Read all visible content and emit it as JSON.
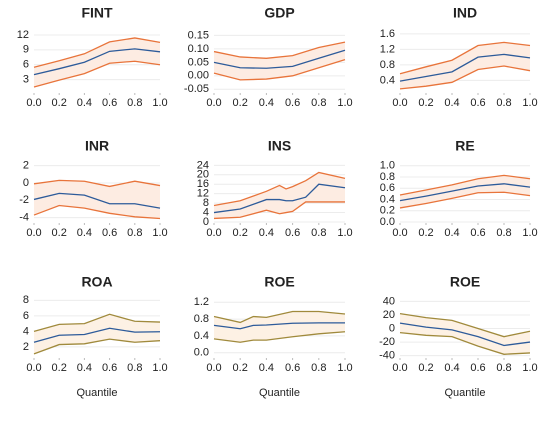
{
  "chart_data": [
    {
      "type": "line",
      "title": "FINT",
      "x": [
        0,
        0.2,
        0.4,
        0.6,
        0.8,
        1.0
      ],
      "band_color": "#fdece2",
      "grid": true,
      "xlim": [
        0,
        1
      ],
      "xticks": [
        {
          "value": 0,
          "label": "0.0"
        },
        0.2,
        0.4,
        0.6,
        0.8,
        {
          "value": 1,
          "label": "1.0"
        }
      ],
      "ylim": [
        0.5,
        13
      ],
      "yticks": [
        3,
        6,
        9,
        12
      ],
      "series": [
        {
          "color": "#e8743b",
          "values": [
            5.5,
            6.8,
            8.2,
            10.6,
            11.4,
            10.5
          ]
        },
        {
          "color": "#2d5b9a",
          "values": [
            4.0,
            5.2,
            6.5,
            8.7,
            9.2,
            8.6
          ]
        },
        {
          "color": "#e8743b",
          "values": [
            1.5,
            2.9,
            4.2,
            6.3,
            6.7,
            6.0
          ]
        }
      ]
    },
    {
      "type": "line",
      "title": "GDP",
      "x": [
        0,
        0.2,
        0.4,
        0.6,
        0.8,
        1.0
      ],
      "band_color": "#fdece2",
      "grid": true,
      "xlim": [
        0,
        1
      ],
      "xticks": [
        {
          "value": 0,
          "label": "0.0"
        },
        0.2,
        0.4,
        0.6,
        0.8,
        {
          "value": 1,
          "label": "1.0"
        }
      ],
      "ylim": [
        -0.06,
        0.17
      ],
      "yticks": [
        {
          "value": -0.05,
          "label": "-0.05"
        },
        {
          "value": 0,
          "label": "0.00"
        },
        0.05,
        {
          "value": 0.1,
          "label": "0.10"
        },
        0.15
      ],
      "series": [
        {
          "color": "#e8743b",
          "values": [
            0.09,
            0.07,
            0.065,
            0.075,
            0.105,
            0.125
          ]
        },
        {
          "color": "#2d5b9a",
          "values": [
            0.05,
            0.03,
            0.028,
            0.035,
            0.065,
            0.095
          ]
        },
        {
          "color": "#e8743b",
          "values": [
            0.01,
            -0.015,
            -0.012,
            0.0,
            0.03,
            0.06
          ]
        }
      ]
    },
    {
      "type": "line",
      "title": "IND",
      "x": [
        0,
        0.2,
        0.4,
        0.6,
        0.8,
        1.0
      ],
      "band_color": "#fdece2",
      "grid": true,
      "xlim": [
        0,
        1
      ],
      "xticks": [
        {
          "value": 0,
          "label": "0.0"
        },
        0.2,
        0.4,
        0.6,
        0.8,
        {
          "value": 1,
          "label": "1.0"
        }
      ],
      "ylim": [
        0.1,
        1.7
      ],
      "yticks": [
        0.4,
        0.8,
        1.2,
        1.6
      ],
      "series": [
        {
          "color": "#e8743b",
          "values": [
            0.57,
            0.75,
            0.92,
            1.3,
            1.38,
            1.3
          ]
        },
        {
          "color": "#2d5b9a",
          "values": [
            0.38,
            0.5,
            0.62,
            1.0,
            1.07,
            0.98
          ]
        },
        {
          "color": "#e8743b",
          "values": [
            0.18,
            0.25,
            0.35,
            0.68,
            0.77,
            0.65
          ]
        }
      ]
    },
    {
      "type": "line",
      "title": "INR",
      "x": [
        0,
        0.2,
        0.4,
        0.6,
        0.8,
        1.0
      ],
      "band_color": "#fdece2",
      "grid": true,
      "xlim": [
        0,
        1
      ],
      "xticks": [
        {
          "value": 0,
          "label": "0.0"
        },
        0.2,
        0.4,
        0.6,
        0.8,
        {
          "value": 1,
          "label": "1.0"
        }
      ],
      "ylim": [
        -4.5,
        2.3
      ],
      "yticks": [
        -4,
        -2,
        0,
        2
      ],
      "series": [
        {
          "color": "#e8743b",
          "values": [
            -0.1,
            0.3,
            0.2,
            -0.4,
            0.2,
            -0.3
          ]
        },
        {
          "color": "#2d5b9a",
          "values": [
            -1.9,
            -1.2,
            -1.4,
            -2.4,
            -2.4,
            -2.9
          ]
        },
        {
          "color": "#e8743b",
          "values": [
            -3.7,
            -2.6,
            -2.9,
            -3.5,
            -3.9,
            -4.1
          ]
        }
      ]
    },
    {
      "type": "line",
      "title": "INS",
      "x": [
        0,
        0.2,
        0.4,
        0.5,
        0.55,
        0.6,
        0.7,
        0.8,
        1.0
      ],
      "band_color": "#fdece2",
      "grid": true,
      "xlim": [
        0,
        1
      ],
      "xticks": [
        {
          "value": 0,
          "label": "0.0"
        },
        0.2,
        0.4,
        0.6,
        0.8,
        {
          "value": 1,
          "label": "1.0"
        }
      ],
      "ylim": [
        0,
        25
      ],
      "yticks": [
        0,
        4,
        8,
        12,
        16,
        20,
        24
      ],
      "series": [
        {
          "color": "#e8743b",
          "values": [
            7,
            9,
            13,
            15.5,
            14,
            15,
            17.5,
            21,
            18.5
          ]
        },
        {
          "color": "#2d5b9a",
          "values": [
            4,
            5.5,
            9.5,
            9.5,
            9,
            9,
            10.5,
            16,
            14.5
          ]
        },
        {
          "color": "#e8743b",
          "values": [
            1.5,
            2,
            5,
            3.5,
            4,
            4.5,
            8.5,
            8.5,
            8.5
          ]
        }
      ]
    },
    {
      "type": "line",
      "title": "RE",
      "x": [
        0,
        0.2,
        0.4,
        0.6,
        0.8,
        1.0
      ],
      "band_color": "#fdece2",
      "grid": true,
      "xlim": [
        0,
        1
      ],
      "xticks": [
        {
          "value": 0,
          "label": "0.0"
        },
        0.2,
        0.4,
        0.6,
        0.8,
        {
          "value": 1,
          "label": "1.0"
        }
      ],
      "ylim": [
        0,
        1.05
      ],
      "yticks": [
        {
          "value": 0,
          "label": "0.0"
        },
        0.2,
        0.4,
        0.6,
        0.8,
        {
          "value": 1,
          "label": "1.0"
        }
      ],
      "series": [
        {
          "color": "#e8743b",
          "values": [
            0.48,
            0.57,
            0.66,
            0.77,
            0.83,
            0.77
          ]
        },
        {
          "color": "#2d5b9a",
          "values": [
            0.38,
            0.46,
            0.55,
            0.64,
            0.68,
            0.62
          ]
        },
        {
          "color": "#e8743b",
          "values": [
            0.25,
            0.33,
            0.42,
            0.52,
            0.53,
            0.47
          ]
        }
      ]
    },
    {
      "type": "line",
      "title": "ROA",
      "xlabel": "Quantile",
      "x": [
        0,
        0.2,
        0.4,
        0.6,
        0.8,
        1.0
      ],
      "band_color": "#fdf1e4",
      "grid": true,
      "xlim": [
        0,
        1
      ],
      "xticks": [
        {
          "value": 0,
          "label": "0.0"
        },
        0.2,
        0.4,
        0.6,
        0.8,
        {
          "value": 1,
          "label": "1.0"
        }
      ],
      "ylim": [
        0.7,
        8.3
      ],
      "yticks": [
        2,
        4,
        6,
        8
      ],
      "series": [
        {
          "color": "#a08a3c",
          "values": [
            4.0,
            4.9,
            5.0,
            6.2,
            5.3,
            5.2
          ]
        },
        {
          "color": "#2d5b9a",
          "values": [
            2.6,
            3.5,
            3.6,
            4.4,
            3.9,
            3.95
          ]
        },
        {
          "color": "#a08a3c",
          "values": [
            1.1,
            2.3,
            2.4,
            3.0,
            2.6,
            2.8
          ]
        }
      ]
    },
    {
      "type": "line",
      "title": "ROE",
      "xlabel": "Quantile",
      "x": [
        0,
        0.2,
        0.3,
        0.4,
        0.6,
        0.8,
        1.0
      ],
      "band_color": "#fdf1e4",
      "grid": true,
      "xlim": [
        0,
        1
      ],
      "xticks": [
        {
          "value": 0,
          "label": "0.0"
        },
        0.2,
        0.4,
        0.6,
        0.8,
        {
          "value": 1,
          "label": "1.0"
        }
      ],
      "ylim": [
        -0.1,
        1.3
      ],
      "yticks": [
        {
          "value": 0,
          "label": "0.0"
        },
        0.4,
        0.8,
        1.2
      ],
      "series": [
        {
          "color": "#a08a3c",
          "values": [
            0.86,
            0.72,
            0.86,
            0.84,
            0.98,
            0.98,
            0.92
          ]
        },
        {
          "color": "#2d5b9a",
          "values": [
            0.65,
            0.57,
            0.65,
            0.66,
            0.7,
            0.71,
            0.71
          ]
        },
        {
          "color": "#a08a3c",
          "values": [
            0.33,
            0.25,
            0.3,
            0.3,
            0.38,
            0.45,
            0.5
          ]
        }
      ]
    },
    {
      "type": "line",
      "title": "ROE",
      "xlabel": "Quantile",
      "x": [
        0,
        0.2,
        0.4,
        0.6,
        0.8,
        1.0
      ],
      "band_color": "#fdf1e4",
      "grid": true,
      "xlim": [
        0,
        1
      ],
      "xticks": [
        {
          "value": 0,
          "label": "0.0"
        },
        0.2,
        0.4,
        0.6,
        0.8,
        {
          "value": 1,
          "label": "1.0"
        }
      ],
      "ylim": [
        -42,
        45
      ],
      "yticks": [
        -40,
        -20,
        0,
        20,
        40
      ],
      "series": [
        {
          "color": "#a08a3c",
          "values": [
            22,
            16,
            12,
            0,
            -12,
            -4
          ]
        },
        {
          "color": "#2d5b9a",
          "values": [
            8,
            2,
            -2,
            -12,
            -25,
            -20
          ]
        },
        {
          "color": "#a08a3c",
          "values": [
            -6,
            -10,
            -12,
            -26,
            -38,
            -36
          ]
        }
      ]
    }
  ]
}
